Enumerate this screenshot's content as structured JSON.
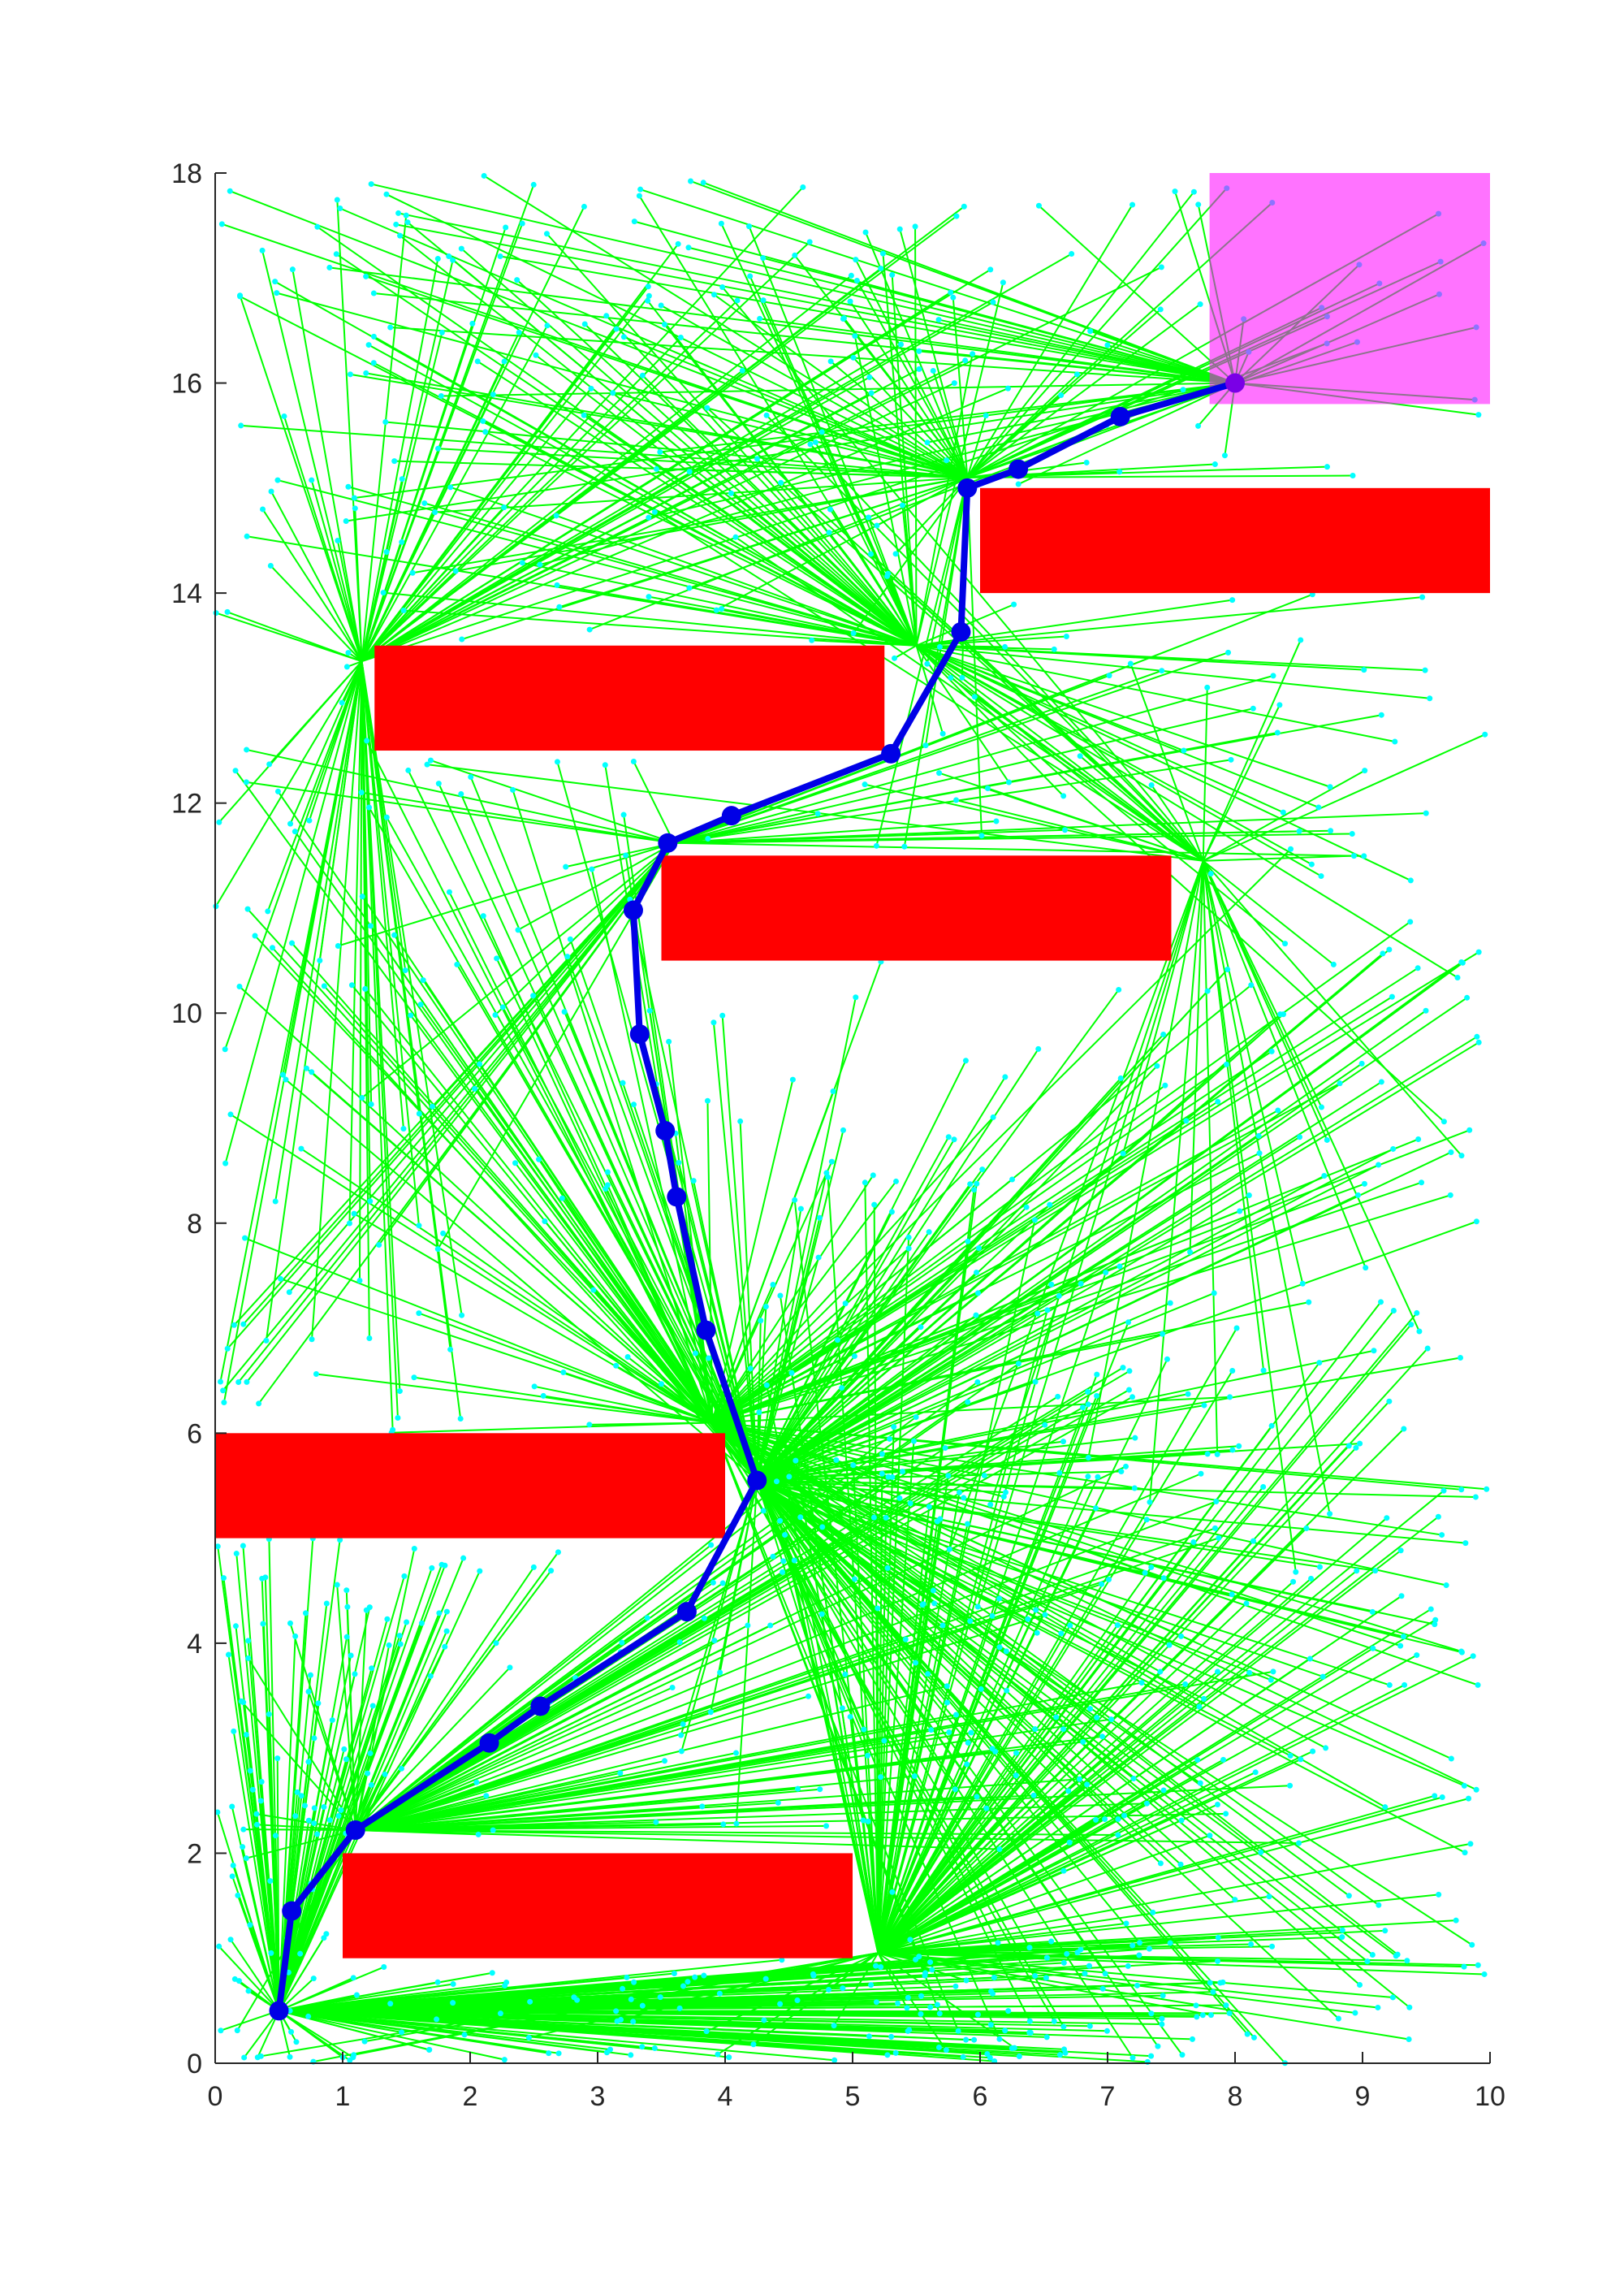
{
  "chart_data": {
    "type": "scatter",
    "title": "",
    "xlabel": "",
    "ylabel": "",
    "xlim": [
      0,
      10
    ],
    "ylim": [
      0,
      18
    ],
    "x_ticks": [
      "0",
      "1",
      "2",
      "3",
      "4",
      "5",
      "6",
      "7",
      "8",
      "9",
      "10"
    ],
    "y_ticks": [
      "0",
      "2",
      "4",
      "6",
      "8",
      "10",
      "12",
      "14",
      "16",
      "18"
    ],
    "grid": false,
    "legend": "none",
    "colors": {
      "tree_edge": "#00ff00",
      "tree_node": "#00ffff",
      "obstacle": "#ff0000",
      "goal_region": "#ff00ff",
      "goal_region_opacity": 0.55,
      "path": "#0000e6",
      "axis": "#262626"
    },
    "obstacles": [
      {
        "x": [
          1.0,
          5.0
        ],
        "y": [
          1.0,
          2.0
        ]
      },
      {
        "x": [
          0.0,
          4.0
        ],
        "y": [
          5.0,
          6.0
        ]
      },
      {
        "x": [
          3.5,
          7.5
        ],
        "y": [
          10.5,
          11.5
        ]
      },
      {
        "x": [
          1.25,
          5.25
        ],
        "y": [
          12.5,
          13.5
        ]
      },
      {
        "x": [
          6.0,
          10.0
        ],
        "y": [
          14.0,
          15.0
        ]
      }
    ],
    "goal_region": {
      "x": [
        7.8,
        10.0
      ],
      "y": [
        15.8,
        18.0
      ]
    },
    "start": {
      "x": 0.5,
      "y": 0.5
    },
    "goal": {
      "x": 8.0,
      "y": 16.0
    },
    "path": {
      "x": [
        0.5,
        0.6,
        1.1,
        2.15,
        2.55,
        3.7,
        4.25,
        3.85,
        3.62,
        3.53,
        3.33,
        3.28,
        3.55,
        4.05,
        5.3,
        5.85,
        5.9,
        6.3,
        7.1,
        8.0
      ],
      "y": [
        0.5,
        1.45,
        2.22,
        3.05,
        3.4,
        4.3,
        5.55,
        6.98,
        8.25,
        8.88,
        9.8,
        10.98,
        11.62,
        11.88,
        12.47,
        13.63,
        15.0,
        15.18,
        15.68,
        16.0
      ]
    },
    "tree_hubs": [
      {
        "x": 0.5,
        "y": 0.5,
        "branches": 230
      },
      {
        "x": 5.2,
        "y": 1.05,
        "branches": 150
      },
      {
        "x": 1.1,
        "y": 2.22,
        "branches": 110
      },
      {
        "x": 4.25,
        "y": 5.55,
        "branches": 180
      },
      {
        "x": 3.9,
        "y": 6.1,
        "branches": 130
      },
      {
        "x": 3.6,
        "y": 11.62,
        "branches": 40
      },
      {
        "x": 1.15,
        "y": 13.35,
        "branches": 90
      },
      {
        "x": 5.5,
        "y": 13.5,
        "branches": 80
      },
      {
        "x": 7.75,
        "y": 11.45,
        "branches": 45
      },
      {
        "x": 5.9,
        "y": 15.1,
        "branches": 70
      },
      {
        "x": 8.0,
        "y": 16.0,
        "branches": 40
      }
    ]
  }
}
